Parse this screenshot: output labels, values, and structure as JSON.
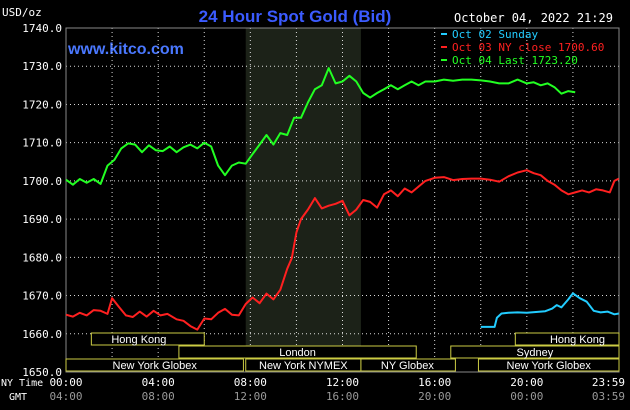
{
  "header": {
    "title": "24 Hour Spot Gold (Bid)",
    "datetime": "October 04, 2022 21:29",
    "unit": "USD/oz",
    "site": "www.kitco.com"
  },
  "legend": [
    {
      "label": "Oct 02 Sunday",
      "color": "#22ccff"
    },
    {
      "label": "Oct 03 NY close 1700.60",
      "color": "#ff2020"
    },
    {
      "label": "Oct 04 Last 1723.20",
      "color": "#22ff22"
    }
  ],
  "colors": {
    "background": "#000000",
    "grid": "#ffffff",
    "title": "#3b5bff",
    "site": "#4a78ff",
    "session_fill": "#1c2218",
    "bar_text": "#ffffff",
    "bar_border": "#cccc44",
    "axis_text": "#ffffff",
    "gmt_text": "#999999"
  },
  "chart_data": {
    "type": "line",
    "ylim": [
      1650,
      1740
    ],
    "xlim": [
      0,
      24
    ],
    "y_ticks": [
      "1650.0",
      "1660.0",
      "1670.0",
      "1680.0",
      "1690.0",
      "1700.0",
      "1710.0",
      "1720.0",
      "1730.0",
      "1740.0"
    ],
    "x_labels_nytime": [
      "00:00",
      "04:00",
      "08:00",
      "12:00",
      "16:00",
      "20:00",
      "23:59"
    ],
    "x_labels_gmt": [
      "04:00",
      "08:00",
      "12:00",
      "16:00",
      "20:00",
      "00:00",
      "03:59"
    ],
    "x_label_row1": "NY Time",
    "x_label_row2": "GMT",
    "grid": true,
    "highlight_session": [
      7.8,
      12.8
    ],
    "series": [
      {
        "name": "Oct 02 Sunday",
        "color": "#22ccff",
        "x": [
          18.0,
          18.6,
          18.7,
          18.9,
          19.2,
          19.6,
          20.0,
          20.4,
          20.8,
          21.1,
          21.3,
          21.5,
          21.8,
          22.0,
          22.3,
          22.6,
          22.9,
          23.2,
          23.5,
          23.8,
          23.99
        ],
        "y": [
          1661.8,
          1661.8,
          1664.2,
          1665.3,
          1665.5,
          1665.6,
          1665.5,
          1665.7,
          1665.9,
          1666.6,
          1667.5,
          1666.9,
          1669.0,
          1670.6,
          1669.3,
          1668.4,
          1666.0,
          1665.6,
          1665.8,
          1665.1,
          1665.3
        ]
      },
      {
        "name": "Oct 03 NY close 1700.60",
        "color": "#ff2020",
        "x": [
          0.0,
          0.3,
          0.6,
          0.9,
          1.2,
          1.5,
          1.8,
          2.0,
          2.3,
          2.6,
          2.9,
          3.2,
          3.5,
          3.8,
          4.1,
          4.4,
          4.8,
          5.1,
          5.4,
          5.7,
          6.0,
          6.3,
          6.6,
          6.9,
          7.2,
          7.5,
          7.8,
          8.1,
          8.4,
          8.7,
          9.0,
          9.3,
          9.6,
          9.8,
          10.0,
          10.2,
          10.5,
          10.8,
          11.1,
          11.4,
          11.7,
          12.0,
          12.3,
          12.6,
          12.9,
          13.2,
          13.5,
          13.8,
          14.1,
          14.4,
          14.7,
          15.0,
          15.3,
          15.6,
          16.0,
          16.4,
          16.8,
          17.2,
          17.6,
          18.0,
          18.4,
          18.8,
          19.2,
          19.6,
          20.0,
          20.3,
          20.6,
          20.9,
          21.2,
          21.5,
          21.8,
          22.1,
          22.4,
          22.7,
          23.0,
          23.3,
          23.6,
          23.8,
          23.99
        ],
        "y": [
          1665.0,
          1664.5,
          1665.5,
          1664.8,
          1666.2,
          1666.0,
          1665.2,
          1669.3,
          1667.0,
          1664.8,
          1664.4,
          1665.8,
          1664.5,
          1666.0,
          1664.8,
          1665.2,
          1663.8,
          1663.4,
          1662.0,
          1661.1,
          1664.0,
          1663.8,
          1665.5,
          1666.5,
          1665.0,
          1664.8,
          1667.8,
          1669.5,
          1668.0,
          1670.5,
          1669.0,
          1671.5,
          1677.0,
          1679.8,
          1686.5,
          1690.0,
          1692.5,
          1695.5,
          1692.8,
          1693.5,
          1694.0,
          1694.8,
          1691.0,
          1692.5,
          1695.0,
          1694.5,
          1693.0,
          1696.5,
          1697.5,
          1696.0,
          1698.0,
          1697.0,
          1698.5,
          1700.0,
          1700.8,
          1701.0,
          1700.2,
          1700.5,
          1700.6,
          1700.6,
          1700.3,
          1699.8,
          1701.2,
          1702.2,
          1702.8,
          1702.0,
          1701.5,
          1700.0,
          1699.0,
          1697.5,
          1696.5,
          1697.0,
          1697.5,
          1697.0,
          1697.8,
          1697.5,
          1697.0,
          1700.0,
          1700.6
        ]
      },
      {
        "name": "Oct 04 Last 1723.20",
        "color": "#22ff22",
        "x": [
          0.0,
          0.3,
          0.6,
          0.9,
          1.2,
          1.5,
          1.8,
          2.1,
          2.4,
          2.7,
          3.0,
          3.3,
          3.6,
          3.9,
          4.2,
          4.5,
          4.8,
          5.1,
          5.4,
          5.7,
          6.0,
          6.3,
          6.6,
          6.9,
          7.2,
          7.5,
          7.8,
          8.1,
          8.4,
          8.7,
          9.0,
          9.3,
          9.6,
          9.9,
          10.2,
          10.5,
          10.8,
          11.1,
          11.4,
          11.7,
          12.0,
          12.3,
          12.6,
          12.9,
          13.2,
          13.5,
          13.8,
          14.1,
          14.4,
          14.7,
          15.0,
          15.3,
          15.6,
          16.0,
          16.4,
          16.8,
          17.2,
          17.6,
          18.0,
          18.4,
          18.8,
          19.2,
          19.6,
          20.0,
          20.3,
          20.6,
          20.9,
          21.2,
          21.5,
          21.8,
          22.1
        ],
        "y": [
          1700.3,
          1699.0,
          1700.5,
          1699.5,
          1700.5,
          1699.2,
          1704.0,
          1705.5,
          1708.5,
          1709.8,
          1709.5,
          1707.5,
          1709.3,
          1708.0,
          1707.8,
          1709.0,
          1707.5,
          1708.8,
          1709.5,
          1708.5,
          1710.0,
          1709.0,
          1704.0,
          1701.5,
          1704.0,
          1704.8,
          1704.5,
          1707.0,
          1709.5,
          1712.0,
          1709.5,
          1712.5,
          1712.0,
          1716.5,
          1716.5,
          1720.5,
          1724.0,
          1725.0,
          1729.5,
          1725.5,
          1726.0,
          1727.5,
          1726.0,
          1723.0,
          1721.8,
          1723.0,
          1724.0,
          1725.0,
          1724.0,
          1725.0,
          1726.0,
          1725.0,
          1726.0,
          1726.0,
          1726.5,
          1726.2,
          1726.5,
          1726.5,
          1726.3,
          1726.0,
          1725.5,
          1725.5,
          1726.5,
          1725.5,
          1725.8,
          1725.0,
          1725.5,
          1724.5,
          1722.8,
          1723.5,
          1723.2
        ]
      }
    ],
    "session_bars": [
      {
        "label": "Hong Kong",
        "row": 1,
        "start": 1.1,
        "end": 6.0,
        "align": "start"
      },
      {
        "label": "London",
        "row": 2,
        "start": 4.9,
        "end": 15.2,
        "align": "center"
      },
      {
        "label": "New York Globex",
        "row": 3,
        "start": 0.0,
        "end": 7.7,
        "align": "center"
      },
      {
        "label": "New York NYMEX",
        "row": 3,
        "start": 7.8,
        "end": 12.8,
        "align": "center"
      },
      {
        "label": "NY Globex",
        "row": 3,
        "start": 12.8,
        "end": 16.9,
        "align": "start"
      },
      {
        "label": "Hong Kong",
        "row": 1,
        "start": 19.5,
        "end": 24.0,
        "align": "end"
      },
      {
        "label": "Sydney",
        "row": 2,
        "start": 16.7,
        "end": 24.0,
        "align": "center"
      },
      {
        "label": "New York Globex",
        "row": 3,
        "start": 17.9,
        "end": 24.0,
        "align": "center"
      }
    ]
  }
}
